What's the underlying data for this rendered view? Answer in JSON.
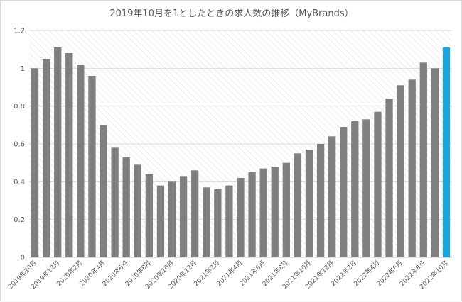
{
  "chart_data": {
    "type": "bar",
    "title": "2019年10月を1としたときの求人数の推移（MyBrands）",
    "xlabel": "",
    "ylabel": "",
    "ylim": [
      0,
      1.2
    ],
    "yticks": [
      "0",
      "0.2",
      "0.4",
      "0.6",
      "0.8",
      "1",
      "1.2"
    ],
    "grid": true,
    "legend": "none",
    "bar_color": "#7f7f7f",
    "highlight_color": "#1aa7e0",
    "highlight_index": 36,
    "categories": [
      "2019年10月",
      "2019年11月",
      "2019年12月",
      "2020年1月",
      "2020年2月",
      "2020年3月",
      "2020年4月",
      "2020年5月",
      "2020年6月",
      "2020年7月",
      "2020年8月",
      "2020年9月",
      "2020年10月",
      "2020年11月",
      "2020年12月",
      "2021年1月",
      "2021年2月",
      "2021年3月",
      "2021年4月",
      "2021年5月",
      "2021年6月",
      "2021年7月",
      "2021年8月",
      "2021年9月",
      "2021年10月",
      "2021年11月",
      "2021年12月",
      "2022年1月",
      "2022年2月",
      "2022年3月",
      "2022年4月",
      "2022年5月",
      "2022年6月",
      "2022年7月",
      "2022年8月",
      "2022年9月",
      "2022年10月"
    ],
    "x_tick_labels_shown": [
      0,
      2,
      4,
      6,
      8,
      10,
      12,
      14,
      16,
      18,
      20,
      22,
      24,
      26,
      28,
      30,
      32,
      34,
      36
    ],
    "values": [
      1.0,
      1.05,
      1.11,
      1.08,
      1.02,
      0.96,
      0.7,
      0.58,
      0.53,
      0.49,
      0.44,
      0.38,
      0.4,
      0.43,
      0.46,
      0.37,
      0.36,
      0.38,
      0.42,
      0.45,
      0.47,
      0.48,
      0.5,
      0.55,
      0.57,
      0.6,
      0.64,
      0.69,
      0.72,
      0.73,
      0.77,
      0.84,
      0.91,
      0.94,
      1.03,
      1.0,
      1.11
    ]
  }
}
